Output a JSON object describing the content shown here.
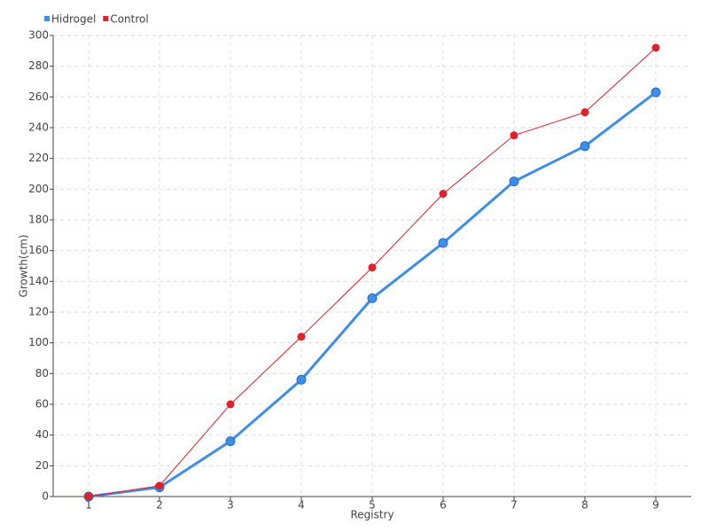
{
  "chart_data": {
    "type": "line",
    "x_label": "Registry",
    "y_label": "Growth(cm)",
    "categories": [
      "1",
      "2",
      "3",
      "4",
      "5",
      "6",
      "7",
      "8",
      "9"
    ],
    "series": [
      {
        "name": "Hidrogel",
        "color": "#3d8ee8",
        "values": [
          0,
          6,
          36,
          76,
          129,
          165,
          205,
          228,
          263
        ]
      },
      {
        "name": "Control",
        "color": "#e0202a",
        "values": [
          0,
          7,
          60,
          104,
          149,
          197,
          235,
          250,
          292
        ]
      }
    ],
    "ylim": [
      0,
      300
    ],
    "yticks": [
      0,
      20,
      40,
      60,
      80,
      100,
      120,
      140,
      160,
      180,
      200,
      220,
      240,
      260,
      280,
      300
    ],
    "grid": true,
    "legend": "top-left"
  }
}
